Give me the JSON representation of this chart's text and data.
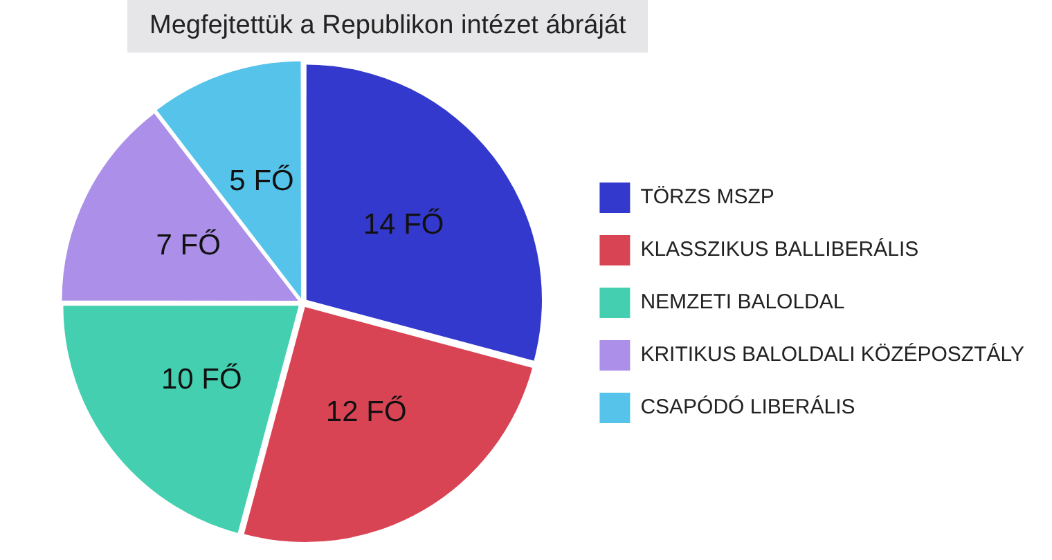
{
  "chart_data": {
    "type": "pie",
    "title": "Megfejtettük a Republikon intézet ábráját",
    "categories": [
      "TÖRZS MSZP",
      "KLASSZIKUS BALLIBERÁLIS",
      "NEMZETI BALOLDAL",
      "KRITIKUS BALOLDALI KÖZÉPOSZTÁLY",
      "CSAPÓDÓ LIBERÁLIS"
    ],
    "values": [
      14,
      12,
      10,
      7,
      5
    ],
    "colors": [
      "#3339cc",
      "#d94455",
      "#44d0b0",
      "#ab8fe8",
      "#55c3ea"
    ],
    "value_labels": [
      "14 FŐ",
      "12 FŐ",
      "10 FŐ",
      "7 FŐ",
      "5 FŐ"
    ],
    "legend": "right"
  }
}
